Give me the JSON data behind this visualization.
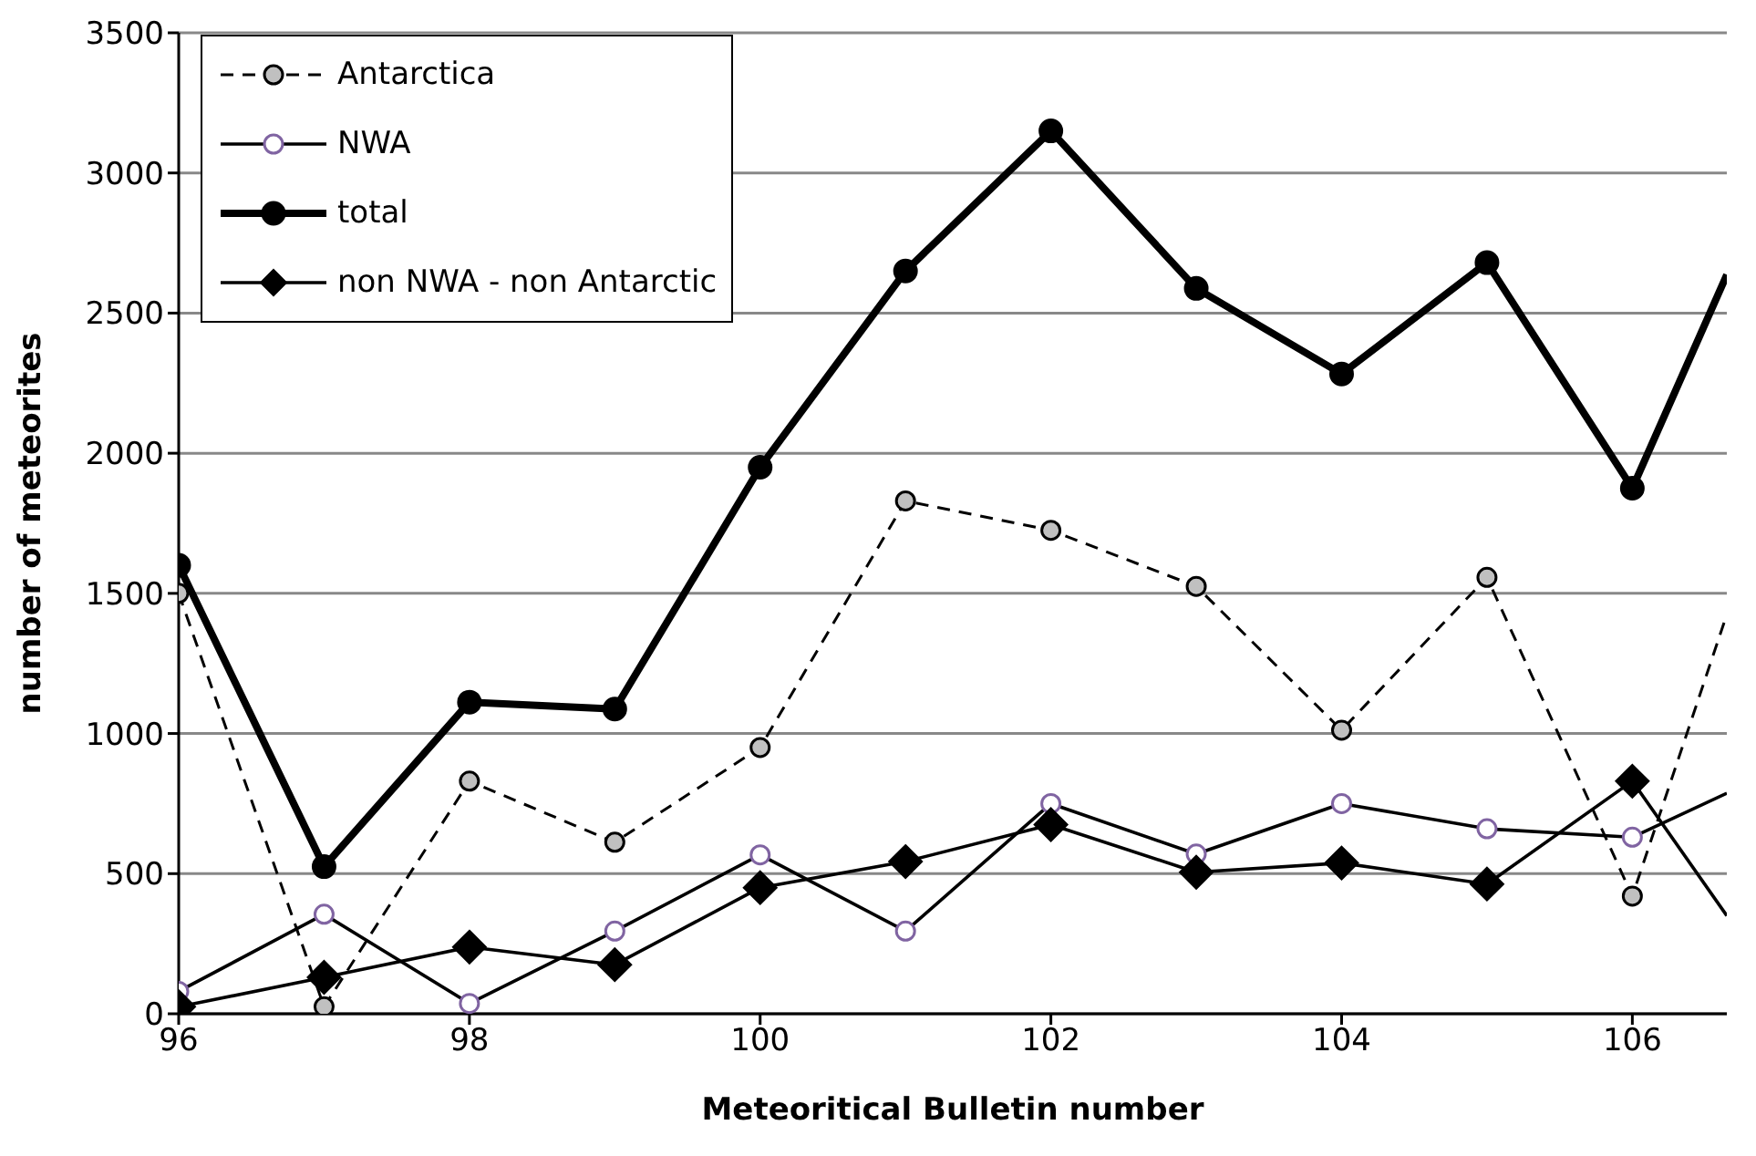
{
  "chart_data": {
    "type": "line",
    "xlabel": "Meteoritical Bulletin number",
    "ylabel": "number of meteorites",
    "xlim": [
      96,
      106.65
    ],
    "xticks": [
      96,
      98,
      100,
      102,
      104,
      106
    ],
    "ylim": [
      0,
      3500
    ],
    "yticks": [
      0,
      500,
      1000,
      1500,
      2000,
      2500,
      3000,
      3500
    ],
    "x": [
      96,
      97,
      98,
      99,
      100,
      101,
      102,
      103,
      104,
      105,
      106,
      106.65
    ],
    "grid": "y",
    "legend": "top left",
    "series": [
      {
        "name": "Antarctica",
        "color": "#000000",
        "line_style": "dashed",
        "marker": "circle",
        "values": [
          1500,
          25,
          830,
          612,
          950,
          1830,
          1725,
          1525,
          1012,
          1557,
          420,
          1425
        ]
      },
      {
        "name": "NWA",
        "color": "#000000",
        "line_style": "solid",
        "marker": "circle",
        "values": [
          80,
          355,
          37,
          295,
          567,
          295,
          750,
          570,
          750,
          660,
          630,
          787
        ]
      },
      {
        "name": "total",
        "color": "#000000",
        "line_style": "solid",
        "marker": "circle",
        "values": [
          1600,
          525,
          1112,
          1087,
          1950,
          2650,
          3150,
          2588,
          2283,
          2680,
          1875,
          2637
        ]
      },
      {
        "name": "non NWA - non Antarctic",
        "color": "#000000",
        "line_style": "solid",
        "marker": "diamond",
        "values": [
          25,
          130,
          238,
          175,
          450,
          543,
          675,
          505,
          538,
          463,
          830,
          350
        ]
      }
    ]
  }
}
